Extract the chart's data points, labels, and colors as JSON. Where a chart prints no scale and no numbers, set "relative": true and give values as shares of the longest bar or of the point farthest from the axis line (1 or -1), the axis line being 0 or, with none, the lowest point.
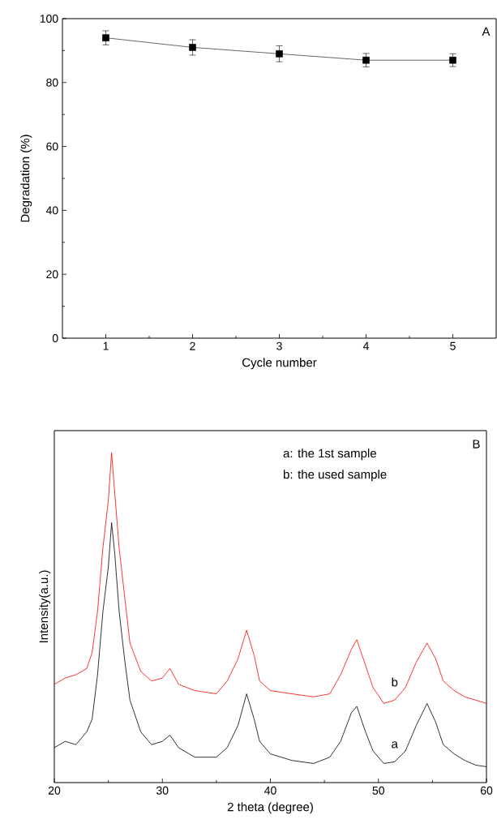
{
  "chart_data": [
    {
      "type": "line",
      "xlabel": "Cycle number",
      "ylabel": "Degradation (%)",
      "x": [
        1,
        2,
        3,
        4,
        5
      ],
      "xlim": [
        0.5,
        5.5
      ],
      "xticks": [
        1,
        2,
        3,
        4,
        5
      ],
      "ylim": [
        0,
        100
      ],
      "yticks": [
        0,
        20,
        40,
        60,
        80,
        100
      ],
      "series": [
        {
          "color": "#000000",
          "values": [
            94,
            91,
            89,
            87,
            87
          ],
          "errors": [
            2.2,
            2.4,
            2.5,
            2.1,
            2.0
          ]
        }
      ],
      "marker": "square",
      "line_style": "solid",
      "annotations": [
        "A"
      ]
    },
    {
      "type": "line",
      "relative": true,
      "tick_labels": "x",
      "xlabel": "2 theta (degree)",
      "ylabel": "Intensity(a.u.)",
      "xlim": [
        20,
        60
      ],
      "xticks": [
        20,
        30,
        40,
        50,
        60
      ],
      "x": [
        20,
        21,
        22,
        23,
        23.5,
        24,
        24.5,
        25,
        25.3,
        25.6,
        26,
        26.5,
        27,
        28,
        29,
        30,
        30.7,
        31.5,
        33,
        35,
        36,
        37,
        37.8,
        38.5,
        39,
        40,
        42,
        44,
        45.5,
        46.5,
        47.5,
        48,
        48.8,
        49.5,
        50.5,
        51.5,
        52.5,
        53.5,
        54.5,
        55.3,
        56,
        57,
        58,
        59,
        60
      ],
      "series": [
        {
          "color": "#000000",
          "values": [
            0.106,
            0.125,
            0.115,
            0.154,
            0.192,
            0.327,
            0.519,
            0.654,
            0.788,
            0.692,
            0.519,
            0.375,
            0.25,
            0.154,
            0.115,
            0.125,
            0.144,
            0.106,
            0.077,
            0.077,
            0.106,
            0.173,
            0.269,
            0.192,
            0.125,
            0.087,
            0.067,
            0.058,
            0.077,
            0.125,
            0.212,
            0.231,
            0.154,
            0.096,
            0.058,
            0.063,
            0.096,
            0.173,
            0.24,
            0.183,
            0.115,
            0.087,
            0.067,
            0.053,
            0.048
          ]
        },
        {
          "color": "#ff0000",
          "values": [
            0.298,
            0.317,
            0.327,
            0.346,
            0.394,
            0.519,
            0.712,
            0.856,
            1.0,
            0.875,
            0.712,
            0.567,
            0.423,
            0.337,
            0.308,
            0.317,
            0.346,
            0.298,
            0.279,
            0.269,
            0.308,
            0.375,
            0.462,
            0.385,
            0.308,
            0.279,
            0.269,
            0.26,
            0.269,
            0.327,
            0.404,
            0.433,
            0.356,
            0.288,
            0.24,
            0.25,
            0.288,
            0.365,
            0.423,
            0.375,
            0.308,
            0.279,
            0.26,
            0.25,
            0.24
          ]
        }
      ],
      "marker": "none",
      "line_style": "solid",
      "annotations": [
        "B",
        "a: the 1st sample",
        "b: the used sample",
        {
          "text": "a",
          "x": 51.5,
          "y": 0.063
        },
        {
          "text": "b",
          "x": 51.5,
          "y": 0.25
        }
      ]
    }
  ]
}
